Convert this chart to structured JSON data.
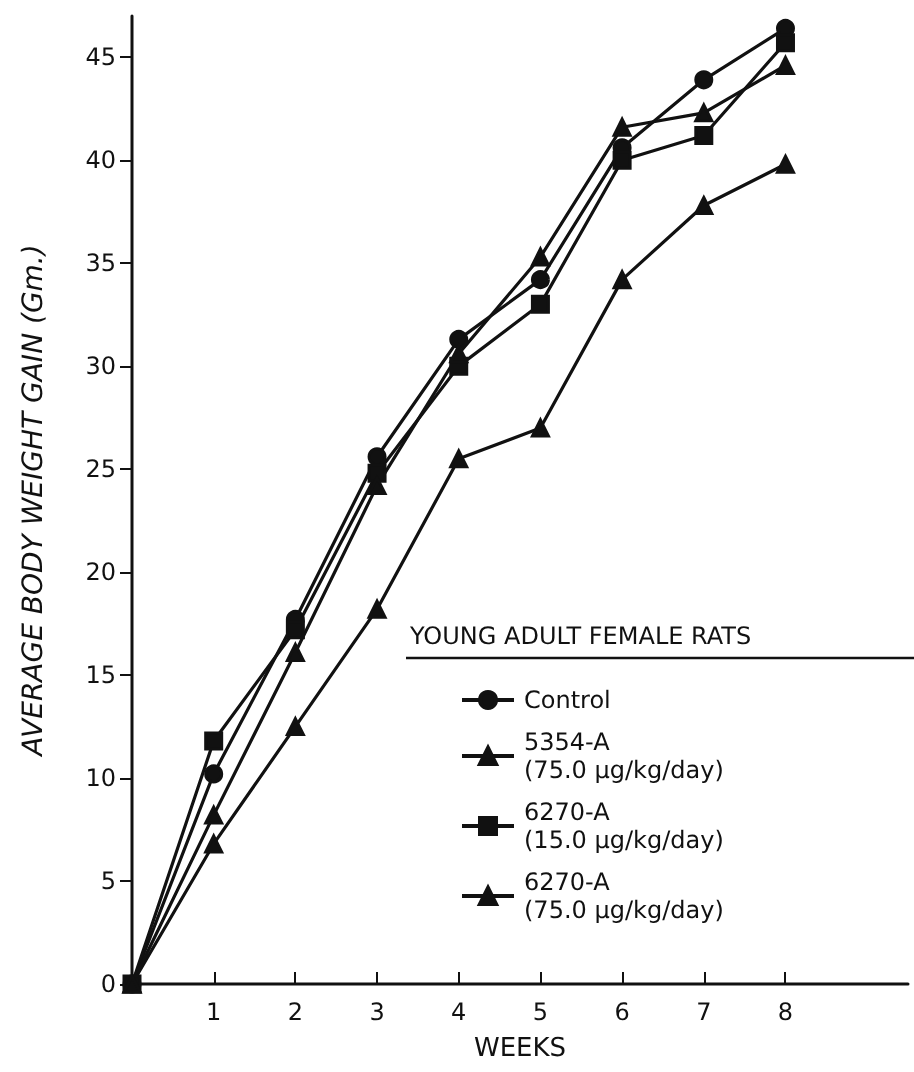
{
  "chart_data": {
    "type": "line",
    "xlabel": "WEEKS",
    "ylabel": "AVERAGE BODY WEIGHT GAIN (Gm.)",
    "legend_title": "YOUNG ADULT FEMALE RATS",
    "x": [
      0,
      1,
      2,
      3,
      4,
      5,
      6,
      7,
      8
    ],
    "series": [
      {
        "name": "Control",
        "color": "#111111",
        "marker": "circle",
        "values": [
          0,
          10.2,
          17.7,
          25.6,
          31.3,
          34.2,
          40.6,
          43.9,
          46.4
        ]
      },
      {
        "name": "5354-A\n(75.0 μg/kg/day)",
        "color": "#111111",
        "marker": "triangle",
        "values": [
          0,
          6.8,
          12.5,
          18.2,
          25.5,
          27.0,
          34.2,
          37.8,
          39.8
        ]
      },
      {
        "name": "6270-A\n(15.0 μg/kg/day)",
        "color": "#111111",
        "marker": "square",
        "values": [
          0,
          11.8,
          17.2,
          24.8,
          30.0,
          33.0,
          40.0,
          41.2,
          45.7
        ]
      },
      {
        "name": "6270-A\n(75.0 μg/kg/day)",
        "color": "#111111",
        "marker": "triangle",
        "values": [
          0,
          8.2,
          16.1,
          24.2,
          30.6,
          35.3,
          41.6,
          42.3,
          44.6
        ]
      }
    ],
    "xlim": [
      0,
      9.5
    ],
    "xticks": [
      1,
      2,
      3,
      4,
      5,
      6,
      7,
      8
    ],
    "ylim": [
      0,
      47
    ],
    "yticks": [
      0,
      5,
      10,
      15,
      20,
      25,
      30,
      35,
      40,
      45
    ],
    "grid": false,
    "legend": "bottom right",
    "line_style": "solid"
  }
}
